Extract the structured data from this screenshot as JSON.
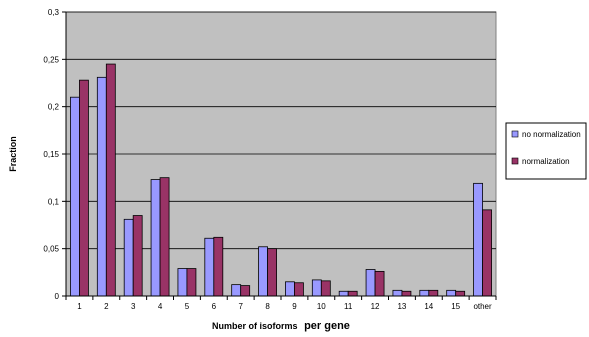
{
  "chart_data": {
    "type": "bar",
    "title": "",
    "xlabel": "Number of isoforms per gene",
    "xlabel_parts": [
      "Number of isoforms",
      "per gene"
    ],
    "ylabel": "Fraction",
    "categories": [
      "1",
      "2",
      "3",
      "4",
      "5",
      "6",
      "7",
      "8",
      "9",
      "10",
      "11",
      "12",
      "13",
      "14",
      "15",
      "other"
    ],
    "ylim": [
      0,
      0.3
    ],
    "yticks": [
      0,
      0.05,
      0.1,
      0.15,
      0.2,
      0.25,
      0.3
    ],
    "ytick_labels": [
      "0",
      "0,05",
      "0,1",
      "0,15",
      "0,2",
      "0,25",
      "0,3"
    ],
    "grid": true,
    "legend_position": "right",
    "series": [
      {
        "name": "no normalization",
        "color": "#9999ff",
        "values": [
          0.21,
          0.231,
          0.081,
          0.123,
          0.029,
          0.061,
          0.012,
          0.052,
          0.015,
          0.017,
          0.005,
          0.028,
          0.006,
          0.006,
          0.006,
          0.119
        ]
      },
      {
        "name": "normalization",
        "color": "#993366",
        "values": [
          0.228,
          0.245,
          0.085,
          0.125,
          0.029,
          0.062,
          0.011,
          0.05,
          0.014,
          0.016,
          0.005,
          0.026,
          0.005,
          0.006,
          0.005,
          0.091
        ]
      }
    ],
    "plot_background": "#c0c0c0"
  }
}
